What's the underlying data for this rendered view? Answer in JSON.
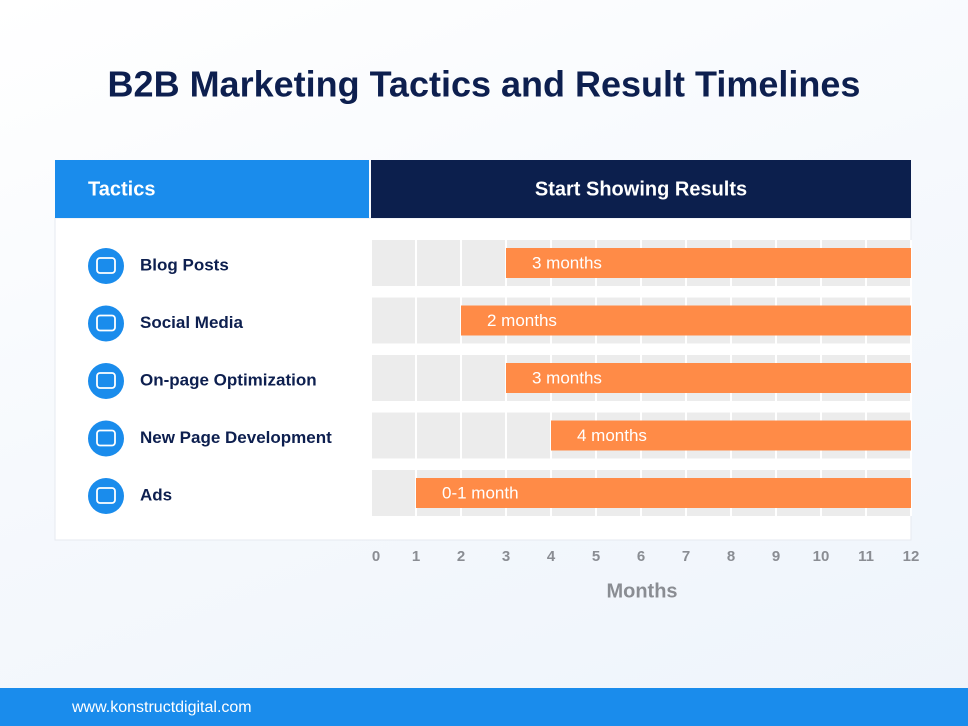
{
  "chart_data": {
    "type": "bar",
    "orientation": "horizontal",
    "title": "B2B Marketing Tactics and Result Timelines",
    "category_header": "Tactics",
    "value_header": "Start Showing Results",
    "categories": [
      "Blog Posts",
      "Social Media",
      "On-page Optimization",
      "New Page Development",
      "Ads"
    ],
    "values": [
      3,
      2,
      3,
      4,
      1
    ],
    "value_labels": [
      "3 months",
      "2 months",
      "3 months",
      "4 months",
      "0-1 month"
    ],
    "color": "#ff8b47",
    "xlim": [
      0,
      12
    ],
    "xticks": [
      0,
      1,
      2,
      3,
      4,
      5,
      6,
      7,
      8,
      9,
      10,
      11,
      12
    ],
    "xlabel": "Months",
    "grid": true
  },
  "footer": "www.konstructdigital.com"
}
